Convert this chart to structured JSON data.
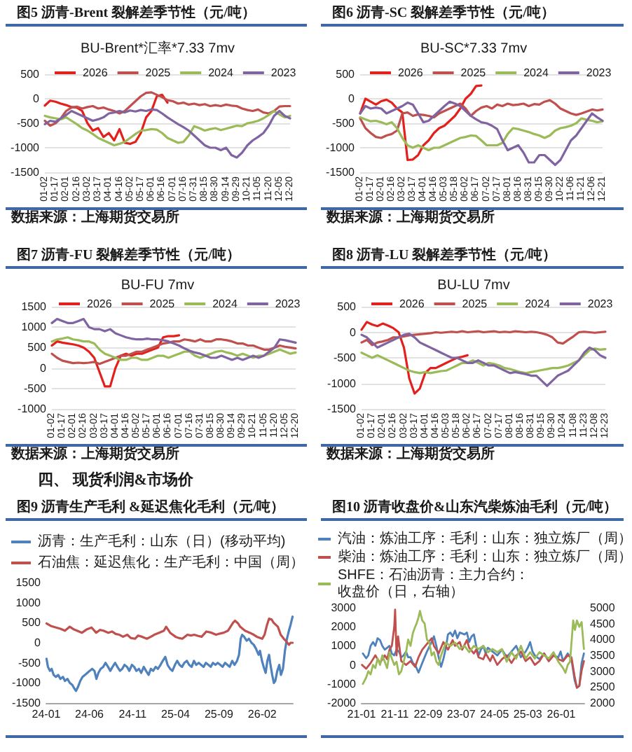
{
  "chart_data": [
    {
      "type": "line",
      "title": "图5 沥青-Brent 裂解差季节性（元/吨）",
      "subtitle": "BU-Brent*汇率*7.33 7mv",
      "categories": [
        "01-02",
        null,
        "01-17",
        null,
        "02-01",
        null,
        "02-16",
        null,
        "03-02",
        null,
        "03-17",
        null,
        "04-01",
        null,
        "04-16",
        null,
        "05-02",
        null,
        "05-17",
        null,
        "06-01",
        null,
        "06-16",
        null,
        "07-01",
        null,
        "07-16",
        null,
        "07-31",
        null,
        "08-15",
        null,
        "08-30",
        null,
        "09-14",
        null,
        "09-29",
        null,
        "10-21",
        null,
        "11-05",
        null,
        "11-20",
        null,
        "12-05",
        null,
        "12-20"
      ],
      "series": [
        {
          "name": "2026",
          "color": "#e3201b",
          "values": [
            -140,
            -40,
            -60,
            -100,
            -130,
            -170,
            -180,
            -250,
            -500,
            -650,
            -600,
            -780,
            -700,
            -850,
            -620,
            -900,
            -920,
            -880,
            -700,
            -380,
            -250,
            50,
            80,
            -80,
            null,
            null,
            null,
            null,
            null,
            null,
            null,
            null,
            null,
            null,
            null,
            null,
            null,
            null,
            null,
            null,
            null,
            null,
            null,
            null,
            null,
            null,
            null
          ]
        },
        {
          "name": "2025",
          "color": "#c0504d",
          "values": [
            -450,
            -550,
            -500,
            -400,
            -250,
            -180,
            -160,
            -200,
            -170,
            -150,
            -200,
            -180,
            -220,
            -250,
            -300,
            -250,
            -150,
            -50,
            50,
            120,
            130,
            80,
            30,
            -30,
            -50,
            -100,
            -80,
            -120,
            -100,
            -130,
            -110,
            -150,
            -130,
            -150,
            -120,
            -140,
            -150,
            -200,
            -230,
            -250,
            -220,
            -280,
            -300,
            -250,
            -160,
            -150,
            -150
          ]
        },
        {
          "name": "2024",
          "color": "#9bbb59",
          "values": [
            -350,
            -380,
            -400,
            -420,
            -380,
            -450,
            -520,
            -600,
            -650,
            -720,
            -800,
            -850,
            -900,
            -950,
            -920,
            -880,
            -800,
            -720,
            -650,
            -640,
            -620,
            -630,
            -700,
            -800,
            -850,
            -900,
            -880,
            -750,
            -560,
            -600,
            -650,
            -620,
            -600,
            -640,
            -610,
            -580,
            -550,
            -560,
            -500,
            -480,
            -450,
            -400,
            -330,
            -250,
            -320,
            -380,
            -350
          ]
        },
        {
          "name": "2023",
          "color": "#8064a2",
          "values": [
            -520,
            -450,
            -470,
            -400,
            -330,
            -250,
            -300,
            -350,
            -400,
            -450,
            -420,
            -380,
            -300,
            -280,
            -250,
            -280,
            -240,
            -260,
            -230,
            -250,
            -220,
            -230,
            -300,
            -380,
            -450,
            -520,
            -580,
            -650,
            -750,
            -850,
            -950,
            -1000,
            -1000,
            -1050,
            -1000,
            -1150,
            -1200,
            -1100,
            -950,
            -850,
            -780,
            -700,
            -550,
            -350,
            -250,
            -350,
            -400
          ]
        }
      ],
      "ylim": [
        -1500,
        500
      ],
      "yticks": [
        -1500,
        -1000,
        -500,
        0,
        500
      ],
      "grid": "y",
      "legend": "top",
      "marker": "none",
      "annotations": [
        "数据来源：上海期货交易所"
      ]
    },
    {
      "type": "line",
      "title": "图6 沥青-SC 裂解差季节性（元/吨）",
      "subtitle": "BU-SC*7.33 7mv",
      "categories": [
        "01-02",
        null,
        "01-17",
        null,
        "02-01",
        null,
        "02-16",
        null,
        "03-02",
        null,
        "03-17",
        null,
        "04-01",
        null,
        "04-16",
        null,
        "05-03",
        null,
        "05-18",
        null,
        "06-02",
        null,
        "06-17",
        null,
        "07-02",
        null,
        "07-17",
        null,
        "08-01",
        null,
        "08-16",
        null,
        "08-31",
        null,
        "09-15",
        null,
        "09-30",
        null,
        "10-22",
        null,
        "11-06",
        null,
        "11-21",
        null,
        "12-06",
        null,
        "12-21"
      ],
      "series": [
        {
          "name": "2026",
          "color": "#e3201b",
          "values": [
            -300,
            0,
            -60,
            -120,
            -50,
            -20,
            -80,
            -200,
            -280,
            -1250,
            -1240,
            -1150,
            -950,
            -850,
            -700,
            -600,
            -550,
            -450,
            -350,
            -200,
            0,
            100,
            260,
            270,
            null,
            null,
            null,
            null,
            null,
            null,
            null,
            null,
            null,
            null,
            null,
            null,
            null,
            null,
            null,
            null,
            null,
            null,
            null,
            null,
            null,
            null,
            null
          ]
        },
        {
          "name": "2025",
          "color": "#c0504d",
          "values": [
            -400,
            -600,
            -700,
            -780,
            -800,
            -750,
            -720,
            -650,
            -300,
            -280,
            -350,
            -320,
            -330,
            -350,
            -380,
            -300,
            -250,
            -200,
            -150,
            -100,
            -200,
            -350,
            -250,
            -180,
            -150,
            -200,
            -120,
            -150,
            -100,
            -130,
            -120,
            -100,
            -150,
            -110,
            -120,
            -60,
            -30,
            -100,
            -200,
            -250,
            -300,
            -330,
            -300,
            -260,
            -220,
            -240,
            -220
          ]
        },
        {
          "name": "2024",
          "color": "#9bbb59",
          "values": [
            -380,
            -420,
            -460,
            -450,
            -480,
            -520,
            -480,
            -600,
            -800,
            -950,
            -1000,
            -950,
            -1000,
            -1050,
            -1000,
            -1000,
            -950,
            -900,
            -850,
            -800,
            -780,
            -750,
            -760,
            -850,
            -950,
            -950,
            -950,
            -900,
            -720,
            -600,
            -620,
            -650,
            -680,
            -720,
            -750,
            -800,
            -750,
            -650,
            -600,
            -580,
            -550,
            -500,
            -400,
            -430,
            -450,
            -480,
            -460
          ]
        },
        {
          "name": "2023",
          "color": "#8064a2",
          "values": [
            -300,
            -150,
            -200,
            -180,
            -200,
            -300,
            -250,
            -200,
            -150,
            -80,
            -120,
            -300,
            -480,
            -450,
            -350,
            -250,
            -150,
            -60,
            -100,
            -150,
            -250,
            -350,
            -420,
            -480,
            -500,
            -550,
            -620,
            -850,
            -1050,
            -1000,
            -950,
            -1100,
            -1300,
            -1300,
            -1150,
            -1150,
            -1250,
            -1350,
            -1250,
            -1050,
            -850,
            -750,
            -600,
            -450,
            -300,
            -380,
            -450
          ]
        }
      ],
      "ylim": [
        -1500,
        500
      ],
      "yticks": [
        -1500,
        -1000,
        -500,
        0,
        500
      ],
      "grid": "y",
      "legend": "top",
      "marker": "none",
      "annotations": [
        "数据来源：上海期货交易所"
      ]
    },
    {
      "type": "line",
      "title": "图7 沥青-FU 裂解差季节性（元/吨）",
      "subtitle": "BU-FU 7mv",
      "categories": [
        "01-02",
        null,
        "01-17",
        null,
        "02-01",
        null,
        "02-16",
        null,
        "03-02",
        null,
        "03-17",
        null,
        "04-01",
        null,
        "04-16",
        null,
        "05-02",
        null,
        "05-17",
        null,
        "06-01",
        null,
        "06-16",
        null,
        "07-01",
        null,
        "07-16",
        null,
        "07-31",
        null,
        "08-15",
        null,
        "08-30",
        null,
        "09-14",
        null,
        "09-29",
        null,
        "10-21",
        null,
        "11-05",
        null,
        "11-20",
        null,
        "12-05",
        null,
        "12-20"
      ],
      "series": [
        {
          "name": "2026",
          "color": "#e3201b",
          "values": [
            550,
            650,
            620,
            600,
            580,
            550,
            500,
            400,
            250,
            -100,
            -450,
            -450,
            0,
            300,
            350,
            300,
            350,
            350,
            400,
            450,
            500,
            750,
            780,
            780,
            800,
            null,
            null,
            null,
            null,
            null,
            null,
            null,
            null,
            null,
            null,
            null,
            null,
            null,
            null,
            null,
            null,
            null,
            null,
            null,
            null,
            null,
            null
          ]
        },
        {
          "name": "2025",
          "color": "#c0504d",
          "values": [
            350,
            250,
            180,
            150,
            120,
            130,
            120,
            130,
            150,
            100,
            150,
            200,
            250,
            300,
            300,
            350,
            400,
            400,
            450,
            500,
            550,
            600,
            620,
            650,
            650,
            700,
            680,
            650,
            700,
            650,
            650,
            700,
            700,
            680,
            650,
            600,
            600,
            550,
            550,
            500,
            450,
            450,
            500,
            550,
            520,
            500,
            480
          ]
        },
        {
          "name": "2024",
          "color": "#9bbb59",
          "values": [
            650,
            700,
            720,
            750,
            700,
            680,
            650,
            650,
            600,
            450,
            350,
            300,
            250,
            200,
            200,
            250,
            250,
            200,
            200,
            250,
            300,
            300,
            250,
            300,
            350,
            400,
            400,
            300,
            250,
            300,
            350,
            400,
            420,
            380,
            350,
            300,
            350,
            300,
            250,
            300,
            300,
            350,
            400,
            450,
            400,
            350,
            380
          ]
        },
        {
          "name": "2023",
          "color": "#8064a2",
          "values": [
            1100,
            1200,
            1150,
            1100,
            1100,
            1150,
            1200,
            1000,
            950,
            950,
            900,
            950,
            850,
            800,
            750,
            720,
            700,
            700,
            720,
            700,
            700,
            680,
            650,
            600,
            550,
            480,
            420,
            380,
            350,
            300,
            250,
            250,
            300,
            250,
            200,
            250,
            200,
            250,
            300,
            250,
            300,
            400,
            500,
            700,
            680,
            650,
            620
          ]
        }
      ],
      "ylim": [
        -1000,
        1500
      ],
      "yticks": [
        -1000,
        -500,
        0,
        500,
        1000,
        1500
      ],
      "grid": "y",
      "legend": "top",
      "marker": "none",
      "annotations": [
        "数据来源：上海期货交易所"
      ]
    },
    {
      "type": "line",
      "title": "图8 沥青-LU 裂解差季节性（元/吨）",
      "subtitle": "BU-LU 7mv",
      "categories": [
        "01-02",
        null,
        "01-17",
        null,
        "02-01",
        null,
        "02-16",
        null,
        "03-02",
        null,
        "03-17",
        null,
        "04-01",
        null,
        "04-16",
        null,
        "05-03",
        null,
        "05-18",
        null,
        "06-02",
        null,
        "06-17",
        null,
        "07-02",
        null,
        "07-17",
        null,
        "08-01",
        null,
        "08-16",
        null,
        "08-31",
        null,
        "09-15",
        null,
        "09-30",
        null,
        "10-24",
        null,
        "11-08",
        null,
        "11-23",
        null,
        "12-08",
        null,
        "12-23"
      ],
      "series": [
        {
          "name": "2026",
          "color": "#e3201b",
          "values": [
            50,
            200,
            150,
            120,
            170,
            130,
            80,
            0,
            -300,
            -900,
            -1200,
            -1100,
            -800,
            -700,
            -700,
            -650,
            -600,
            -550,
            -500,
            -480,
            -450,
            null,
            null,
            null,
            null,
            null,
            null,
            null,
            null,
            null,
            null,
            null,
            null,
            null,
            null,
            null,
            null,
            null,
            null,
            null,
            null,
            null,
            null,
            null,
            null,
            null,
            null
          ]
        },
        {
          "name": "2025",
          "color": "#c0504d",
          "values": [
            -200,
            -150,
            -250,
            -200,
            -180,
            -150,
            -100,
            -100,
            -80,
            -60,
            -50,
            -40,
            -30,
            -20,
            0,
            -10,
            0,
            10,
            0,
            20,
            0,
            10,
            20,
            0,
            10,
            20,
            0,
            10,
            0,
            20,
            10,
            0,
            10,
            0,
            -20,
            -50,
            -100,
            -200,
            -220,
            -150,
            -80,
            0,
            10,
            0,
            -10,
            0,
            10
          ]
        },
        {
          "name": "2024",
          "color": "#9bbb59",
          "values": [
            -400,
            -450,
            -500,
            -450,
            -500,
            -550,
            -600,
            -650,
            -700,
            -750,
            -780,
            -800,
            -780,
            -800,
            -780,
            -760,
            -750,
            -700,
            -650,
            -600,
            -600,
            -550,
            -600,
            -650,
            -600,
            -620,
            -650,
            -700,
            -720,
            -750,
            -780,
            -800,
            -780,
            -760,
            -740,
            -720,
            -700,
            -700,
            -680,
            -650,
            -600,
            -550,
            -450,
            -350,
            -320,
            -340,
            -330
          ]
        },
        {
          "name": "2023",
          "color": "#8064a2",
          "values": [
            -50,
            -100,
            -200,
            -300,
            -250,
            -200,
            -150,
            -100,
            -50,
            -30,
            -100,
            -200,
            -250,
            -300,
            -350,
            -400,
            -450,
            -500,
            -500,
            -550,
            -600,
            -600,
            -550,
            -600,
            -650,
            -650,
            -700,
            -750,
            -800,
            -780,
            -800,
            -820,
            -850,
            -850,
            -950,
            -1050,
            -950,
            -850,
            -800,
            -750,
            -650,
            -550,
            -400,
            -300,
            -350,
            -450,
            -500
          ]
        }
      ],
      "ylim": [
        -1500,
        500
      ],
      "yticks": [
        -1500,
        -1000,
        -500,
        0,
        500
      ],
      "grid": "y",
      "legend": "top",
      "marker": "none",
      "annotations": [
        "数据来源：上海期货交易所"
      ]
    },
    {
      "type": "line",
      "title": "图9 沥青生产毛利 &延迟焦化毛利（元/吨）",
      "series": [
        {
          "name": "沥青：生产毛利：山东（日）(移动平均)",
          "color": "#4f81bd",
          "x": [
            "2024-01-02",
            "2024-01-07",
            "2024-01-14",
            "2024-01-20",
            "2024-01-27",
            "2024-02-04",
            "2024-02-12",
            "2024-02-20",
            "2024-02-29",
            "2024-03-07",
            "2024-03-16",
            "2024-03-24",
            "2024-04-02",
            "2024-04-10",
            "2024-04-15",
            "2024-04-22",
            "2024-04-30",
            "2024-05-08",
            "2024-05-17",
            "2024-05-25",
            "2024-06-02",
            "2024-06-11",
            "2024-06-19",
            "2024-06-26",
            "2024-07-03",
            "2024-07-11",
            "2024-07-20",
            "2024-07-28",
            "2024-08-06",
            "2024-08-14",
            "2024-08-22",
            "2024-08-31",
            "2024-09-08",
            "2024-09-17",
            "2024-09-25",
            "2024-10-03",
            "2024-10-12",
            "2024-10-20",
            "2024-10-29",
            "2024-11-06",
            "2024-11-14",
            "2024-11-23",
            "2024-12-01",
            "2024-12-10",
            "2024-12-18",
            "2024-12-27",
            "2025-01-04",
            "2025-01-12",
            "2025-01-21",
            "2025-01-29",
            "2025-02-07",
            "2025-02-15",
            "2025-02-24",
            "2025-03-04",
            "2025-03-13",
            "2025-03-21",
            "2025-03-30",
            "2025-04-07",
            "2025-04-15",
            "2025-04-24",
            "2025-05-02",
            "2025-05-11",
            "2025-05-19",
            "2025-05-28",
            "2025-06-05",
            "2025-06-13",
            "2025-06-22",
            "2025-06-30",
            "2025-07-09",
            "2025-07-17",
            "2025-07-26",
            "2025-08-03",
            "2025-08-11",
            "2025-08-20",
            "2025-08-28",
            "2025-09-06",
            "2025-09-14",
            "2025-09-23",
            "2025-10-01",
            "2025-10-09",
            "2025-10-18",
            "2025-10-26",
            "2025-11-04",
            "2025-11-11",
            "2025-11-17",
            "2025-11-22",
            "2025-11-29",
            "2025-12-08",
            "2025-12-16",
            "2025-12-25",
            "2026-01-02",
            "2026-01-10",
            "2026-01-19",
            "2026-01-24",
            "2026-01-31",
            "2026-02-06",
            "2026-02-13",
            "2026-02-19",
            "2026-02-25",
            "2026-03-01",
            "2026-03-08",
            "2026-03-14",
            "2026-03-19",
            "2026-03-26",
            "2026-04-02",
            "2026-04-08",
            "2026-04-15",
            "2026-04-22",
            "2026-04-29",
            "2026-05-06",
            "2026-05-12",
            "2026-05-19"
          ],
          "values": [
            -400,
            -600,
            -700,
            -650,
            -800,
            -850,
            -800,
            -900,
            -850,
            -950,
            -900,
            -1000,
            -1050,
            -1150,
            -1200,
            -1100,
            -950,
            -850,
            -800,
            -750,
            -700,
            -650,
            -700,
            -900,
            -750,
            -650,
            -600,
            -500,
            -600,
            -700,
            -600,
            -500,
            -600,
            -700,
            -650,
            -550,
            -600,
            -700,
            -550,
            -600,
            -700,
            -650,
            -750,
            -600,
            -700,
            -800,
            -650,
            -700,
            -600,
            -650,
            -550,
            -450,
            -350,
            -550,
            -650,
            -700,
            -550,
            -450,
            -550,
            -600,
            -500,
            -450,
            -550,
            -600,
            -450,
            -550,
            -500,
            -550,
            -600,
            -500,
            -550,
            -600,
            -500,
            -550,
            -500,
            -550,
            -600,
            -500,
            -550,
            -600,
            -450,
            -550,
            -450,
            -300,
            100,
            200,
            150,
            50,
            100,
            0,
            -50,
            -150,
            -300,
            -200,
            -450,
            -600,
            -750,
            -450,
            -300,
            -500,
            -800,
            -1000,
            -950,
            -700,
            -550,
            -800,
            -650,
            -200,
            100,
            300,
            450,
            650
          ]
        },
        {
          "name": "石油焦：延迟焦化：生产毛利：中国（周）",
          "color": "#c0504d",
          "x": [
            "2024-01-02",
            "2024-01-17",
            "2024-02-05",
            "2024-02-20",
            "2024-03-07",
            "2024-03-24",
            "2024-04-08",
            "2024-04-19",
            "2024-05-06",
            "2024-05-22",
            "2024-06-09",
            "2024-06-25",
            "2024-07-08",
            "2024-07-21",
            "2024-08-07",
            "2024-08-20",
            "2024-09-02",
            "2024-09-15",
            "2024-09-28",
            "2024-10-13",
            "2024-10-25",
            "2024-11-09",
            "2024-11-20",
            "2024-12-04",
            "2024-12-21",
            "2025-01-04",
            "2025-01-16",
            "2025-02-02",
            "2025-02-19",
            "2025-02-27",
            "2025-03-13",
            "2025-04-01",
            "2025-04-12",
            "2025-04-25",
            "2025-05-13",
            "2025-05-25",
            "2025-06-06",
            "2025-06-20",
            "2025-07-02",
            "2025-07-19",
            "2025-08-06",
            "2025-08-22",
            "2025-09-05",
            "2025-09-18",
            "2025-10-03",
            "2025-10-21",
            "2025-10-28",
            "2025-11-08",
            "2025-11-15",
            "2025-12-02",
            "2025-12-19",
            "2026-01-02",
            "2026-01-13",
            "2026-02-01",
            "2026-02-09",
            "2026-02-18",
            "2026-02-25",
            "2026-03-06",
            "2026-03-13",
            "2026-03-28",
            "2026-04-07",
            "2026-04-18",
            "2026-04-25",
            "2026-05-06",
            "2026-05-12",
            "2026-05-19"
          ],
          "values": [
            480,
            420,
            380,
            350,
            300,
            400,
            330,
            300,
            250,
            330,
            380,
            250,
            320,
            300,
            250,
            280,
            220,
            200,
            150,
            200,
            120,
            100,
            180,
            150,
            100,
            150,
            200,
            250,
            300,
            400,
            250,
            150,
            120,
            100,
            200,
            180,
            200,
            170,
            150,
            280,
            250,
            200,
            230,
            250,
            300,
            500,
            550,
            480,
            400,
            300,
            250,
            200,
            150,
            100,
            200,
            450,
            600,
            580,
            500,
            400,
            200,
            100,
            50,
            -50,
            0,
            0
          ]
        }
      ],
      "xlim": [
        "2024-01-01",
        "2026-05-20"
      ],
      "xticks": [
        {
          "value": "2024-01-01",
          "label": "24-01"
        },
        {
          "value": "2024-06-01",
          "label": "24-06"
        },
        {
          "value": "2024-11-01",
          "label": "24-11"
        },
        {
          "value": "2025-04-01",
          "label": "25-04"
        },
        {
          "value": "2025-09-01",
          "label": "25-09"
        },
        {
          "value": "2026-02-01",
          "label": "26-02"
        }
      ],
      "ylim": [
        -1500,
        1500
      ],
      "yticks": [
        -1500,
        -1000,
        -500,
        0,
        500,
        1000,
        1500
      ],
      "legend": "top",
      "marker": "none",
      "annotations": [
        "四、 现货利润&市场价"
      ]
    },
    {
      "type": "line",
      "title": "图10 沥青收盘价&山东汽柴炼油毛利（元/吨）",
      "series": [
        {
          "name": "汽油：炼油工序：毛利：山东：独立炼厂（周）",
          "color": "#4f81bd",
          "x": [
            "2021-01-13",
            "2021-02-12",
            "2021-03-04",
            "2021-03-25",
            "2021-04-16",
            "2021-05-07",
            "2021-05-28",
            "2021-06-19",
            "2021-07-10",
            "2021-08-01",
            "2021-08-23",
            "2021-09-14",
            "2021-10-05",
            "2021-10-27",
            "2021-11-17",
            "2021-12-09",
            "2021-12-30",
            "2022-01-21",
            "2022-02-12",
            "2022-03-03",
            "2022-03-25",
            "2022-04-15",
            "2022-05-06",
            "2022-06-06",
            "2022-07-10",
            "2022-08-22",
            "2022-10-04",
            "2022-10-25",
            "2022-11-16",
            "2022-12-07",
            "2022-12-29",
            "2023-01-19",
            "2023-02-11",
            "2023-03-02",
            "2023-03-24",
            "2023-04-14",
            "2023-05-06",
            "2023-05-27",
            "2023-06-18",
            "2023-08-01",
            "2023-08-22",
            "2023-09-12",
            "2023-10-04",
            "2023-10-25",
            "2023-11-15",
            "2023-12-07",
            "2023-12-28",
            "2024-01-19",
            "2024-02-10",
            "2024-03-01",
            "2024-04-13",
            "2024-05-26",
            "2024-07-08",
            "2024-07-30",
            "2024-08-20",
            "2024-10-02",
            "2024-11-15",
            "2024-12-28",
            "2025-02-09",
            "2025-03-01",
            "2025-03-22",
            "2025-04-13",
            "2025-05-04",
            "2025-06-16",
            "2025-07-28",
            "2025-09-09",
            "2025-10-22",
            "2025-12-05",
            "2025-12-26",
            "2026-01-17",
            "2026-03-01",
            "2026-04-04",
            "2026-05-03",
            "2026-05-24",
            "2026-06-15",
            "2026-07-06",
            "2026-07-27"
          ],
          "values": [
            600,
            350,
            500,
            1000,
            1200,
            1000,
            1400,
            1300,
            1000,
            800,
            900,
            1000,
            600,
            500,
            800,
            700,
            400,
            500,
            700,
            400,
            400,
            100,
            0,
            -400,
            100,
            700,
            1200,
            1500,
            1000,
            400,
            -100,
            300,
            900,
            1600,
            1700,
            1500,
            1800,
            1400,
            1700,
            1600,
            1700,
            1200,
            1500,
            1600,
            1000,
            500,
            800,
            1000,
            600,
            900,
            700,
            500,
            800,
            600,
            400,
            700,
            1000,
            400,
            700,
            900,
            1200,
            700,
            500,
            300,
            600,
            200,
            500,
            400,
            700,
            200,
            600,
            300,
            -800,
            -1200,
            -1100,
            100,
            600
          ]
        },
        {
          "name": "柴油：炼油工序：毛利：山东：独立炼厂（周）",
          "color": "#c0504d",
          "x": [
            "2021-01-05",
            "2021-02-12",
            "2021-03-25",
            "2021-05-07",
            "2021-06-19",
            "2021-08-01",
            "2021-08-23",
            "2021-09-14",
            "2021-10-05",
            "2021-10-27",
            "2021-11-04",
            "2021-11-17",
            "2021-12-01",
            "2021-12-30",
            "2022-02-12",
            "2022-03-25",
            "2022-05-06",
            "2022-06-06",
            "2022-07-10",
            "2022-08-22",
            "2022-10-04",
            "2022-10-25",
            "2022-12-07",
            "2023-01-19",
            "2023-03-02",
            "2023-04-14",
            "2023-05-06",
            "2023-06-18",
            "2023-07-10",
            "2023-08-22",
            "2023-09-12",
            "2023-10-25",
            "2023-11-15",
            "2023-12-07",
            "2024-01-19",
            "2024-02-10",
            "2024-03-22",
            "2024-04-13",
            "2024-05-26",
            "2024-07-08",
            "2024-08-20",
            "2024-10-02",
            "2024-11-15",
            "2024-12-28",
            "2025-02-09",
            "2025-03-22",
            "2025-05-04",
            "2025-06-16",
            "2025-07-28",
            "2025-09-09",
            "2025-10-22",
            "2025-12-05",
            "2026-01-17",
            "2026-03-01",
            "2026-04-04",
            "2026-05-03",
            "2026-05-24",
            "2026-06-15",
            "2026-07-06",
            "2026-07-27"
          ],
          "values": [
            0,
            -200,
            100,
            500,
            100,
            500,
            300,
            800,
            1000,
            2000,
            2900,
            500,
            1500,
            200,
            0,
            200,
            -100,
            400,
            800,
            1100,
            1400,
            1000,
            600,
            1200,
            800,
            1300,
            1000,
            1200,
            800,
            1300,
            900,
            600,
            800,
            400,
            300,
            600,
            200,
            500,
            0,
            300,
            500,
            100,
            500,
            700,
            200,
            400,
            0,
            200,
            600,
            200,
            500,
            300,
            200,
            500,
            400,
            -600,
            -1200,
            -1100,
            -300,
            200
          ]
        },
        {
          "name": "SHFE：石油沥青：主力合约：收盘价（日，右轴）",
          "color": "#9bbb59",
          "axis": "y2",
          "x": [
            "2021-01-13",
            "2021-02-12",
            "2021-03-04",
            "2021-03-25",
            "2021-04-16",
            "2021-05-07",
            "2021-05-28",
            "2021-06-19",
            "2021-07-10",
            "2021-08-01",
            "2021-08-23",
            "2021-09-14",
            "2021-10-05",
            "2021-10-27",
            "2021-11-17",
            "2021-12-09",
            "2021-12-30",
            "2022-01-21",
            "2022-02-12",
            "2022-03-03",
            "2022-03-25",
            "2022-04-15",
            "2022-05-06",
            "2022-05-19",
            "2022-06-06",
            "2022-06-19",
            "2022-07-10",
            "2022-08-01",
            "2022-08-22",
            "2022-09-13",
            "2022-10-04",
            "2022-10-25",
            "2022-11-16",
            "2022-12-07",
            "2022-12-29",
            "2023-02-11",
            "2023-03-24",
            "2023-05-06",
            "2023-06-18",
            "2023-08-01",
            "2023-09-12",
            "2023-10-25",
            "2023-12-07",
            "2024-01-19",
            "2024-03-01",
            "2024-04-13",
            "2024-05-26",
            "2024-07-08",
            "2024-08-20",
            "2024-10-02",
            "2024-11-15",
            "2024-12-28",
            "2025-02-09",
            "2025-03-22",
            "2025-05-04",
            "2025-06-16",
            "2025-07-28",
            "2025-09-09",
            "2025-10-22",
            "2025-12-05",
            "2026-01-17",
            "2026-02-08",
            "2026-03-01",
            "2026-03-22",
            "2026-04-20",
            "2026-05-06",
            "2026-05-24",
            "2026-06-15",
            "2026-07-06",
            "2026-07-27"
          ],
          "values": [
            2600,
            2800,
            3000,
            2900,
            3200,
            3100,
            3400,
            3200,
            3500,
            3300,
            3100,
            3600,
            3400,
            3200,
            3300,
            2900,
            3000,
            3300,
            3600,
            4000,
            3800,
            4200,
            4400,
            4500,
            4700,
            4900,
            4600,
            4500,
            4000,
            3900,
            3500,
            3600,
            3300,
            3200,
            3500,
            3900,
            3800,
            3900,
            3700,
            3800,
            3600,
            3800,
            3700,
            3800,
            3600,
            3700,
            3600,
            3700,
            3300,
            3600,
            3400,
            3800,
            3400,
            3600,
            3400,
            3600,
            3500,
            3400,
            3600,
            3300,
            3100,
            2950,
            3200,
            3300,
            4600,
            4300,
            4600,
            4400,
            4550,
            3700
          ]
        }
      ],
      "xlim": [
        "2021-01-01",
        "2026-07-31"
      ],
      "xticks": [
        {
          "value": "2021-01-01",
          "label": "21-01"
        },
        {
          "value": "2021-11-01",
          "label": "21-11"
        },
        {
          "value": "2022-09-01",
          "label": "22-09"
        },
        {
          "value": "2023-07-01",
          "label": "23-07"
        },
        {
          "value": "2024-05-01",
          "label": "24-05"
        },
        {
          "value": "2025-03-01",
          "label": "25-03"
        },
        {
          "value": "2026-01-01",
          "label": "26-01"
        }
      ],
      "ylim": [
        -2000,
        3000
      ],
      "yticks": [
        -2000,
        -1000,
        0,
        1000,
        2000,
        3000
      ],
      "y2lim": [
        2000,
        5000
      ],
      "y2ticks": [
        2000,
        2500,
        3000,
        3500,
        4000,
        4500,
        5000
      ],
      "legend": "top left",
      "marker": "none"
    }
  ]
}
